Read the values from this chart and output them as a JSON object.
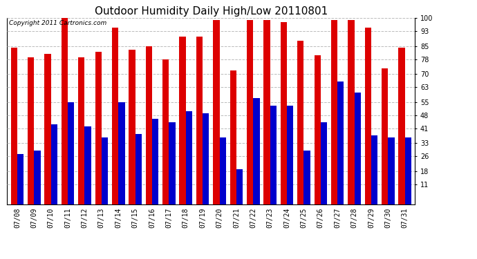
{
  "title": "Outdoor Humidity Daily High/Low 20110801",
  "copyright": "Copyright 2011 Cartronics.com",
  "dates": [
    "07/08",
    "07/09",
    "07/10",
    "07/11",
    "07/12",
    "07/13",
    "07/14",
    "07/15",
    "07/16",
    "07/17",
    "07/18",
    "07/19",
    "07/20",
    "07/21",
    "07/22",
    "07/23",
    "07/24",
    "07/25",
    "07/26",
    "07/27",
    "07/28",
    "07/29",
    "07/30",
    "07/31"
  ],
  "highs": [
    84,
    79,
    81,
    100,
    79,
    82,
    95,
    83,
    85,
    78,
    90,
    90,
    99,
    72,
    99,
    99,
    98,
    88,
    80,
    99,
    99,
    95,
    73,
    84
  ],
  "lows": [
    27,
    29,
    43,
    55,
    42,
    36,
    55,
    38,
    46,
    44,
    50,
    49,
    36,
    19,
    57,
    53,
    53,
    29,
    44,
    66,
    60,
    37,
    36,
    36
  ],
  "bar_color_high": "#dd0000",
  "bar_color_low": "#0000cc",
  "background_color": "#ffffff",
  "grid_color": "#bbbbbb",
  "yticks": [
    11,
    18,
    26,
    33,
    41,
    48,
    55,
    63,
    70,
    78,
    85,
    93,
    100
  ],
  "ymin": 0,
  "ymax": 100,
  "bar_width": 0.38,
  "title_fontsize": 11,
  "tick_fontsize": 7,
  "copyright_fontsize": 6.5
}
